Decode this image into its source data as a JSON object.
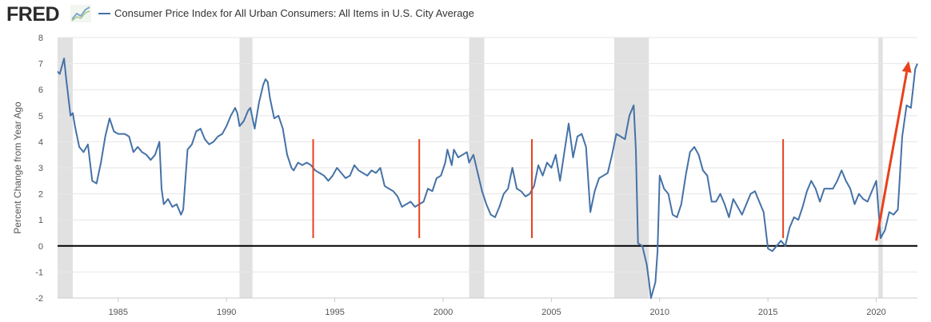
{
  "header": {
    "logo_text": "FRED",
    "logo_icon": "line-chart-icon",
    "legend_label": "Consumer Price Index for All Urban Consumers: All Items in U.S. City Average"
  },
  "chart_data": {
    "type": "line",
    "title": "",
    "xlabel": "",
    "ylabel": "Percent Change from Year Ago",
    "xlim": [
      1982.2,
      2021.9
    ],
    "ylim": [
      -2,
      8
    ],
    "x_ticks": [
      1985,
      1990,
      1995,
      2000,
      2005,
      2010,
      2015,
      2020
    ],
    "y_ticks": [
      -2,
      -1,
      0,
      1,
      2,
      3,
      4,
      5,
      6,
      7,
      8
    ],
    "grid": "horizontal",
    "recessions": [
      [
        1982.2,
        1982.9
      ],
      [
        1990.6,
        1991.2
      ],
      [
        2001.2,
        2001.9
      ],
      [
        2007.9,
        2009.5
      ],
      [
        2020.1,
        2020.3
      ]
    ],
    "zero_line": 0,
    "series": [
      {
        "name": "Consumer Price Index for All Urban Consumers: All Items in U.S. City Average",
        "color": "#4572a7",
        "points": [
          [
            1982.2,
            6.7
          ],
          [
            1982.3,
            6.6
          ],
          [
            1982.5,
            7.2
          ],
          [
            1982.6,
            6.4
          ],
          [
            1982.8,
            5.0
          ],
          [
            1982.9,
            5.1
          ],
          [
            1983.0,
            4.6
          ],
          [
            1983.2,
            3.8
          ],
          [
            1983.4,
            3.6
          ],
          [
            1983.6,
            3.9
          ],
          [
            1983.8,
            2.5
          ],
          [
            1984.0,
            2.4
          ],
          [
            1984.2,
            3.2
          ],
          [
            1984.4,
            4.2
          ],
          [
            1984.6,
            4.9
          ],
          [
            1984.8,
            4.4
          ],
          [
            1985.0,
            4.3
          ],
          [
            1985.3,
            4.3
          ],
          [
            1985.5,
            4.2
          ],
          [
            1985.7,
            3.6
          ],
          [
            1985.9,
            3.8
          ],
          [
            1986.1,
            3.6
          ],
          [
            1986.3,
            3.5
          ],
          [
            1986.5,
            3.3
          ],
          [
            1986.7,
            3.5
          ],
          [
            1986.9,
            4.0
          ],
          [
            1987.0,
            2.2
          ],
          [
            1987.1,
            1.6
          ],
          [
            1987.3,
            1.8
          ],
          [
            1987.5,
            1.5
          ],
          [
            1987.7,
            1.6
          ],
          [
            1987.9,
            1.2
          ],
          [
            1988.0,
            1.4
          ],
          [
            1988.2,
            3.7
          ],
          [
            1988.4,
            3.9
          ],
          [
            1988.6,
            4.4
          ],
          [
            1988.8,
            4.5
          ],
          [
            1989.0,
            4.1
          ],
          [
            1989.2,
            3.9
          ],
          [
            1989.4,
            4.0
          ],
          [
            1989.6,
            4.2
          ],
          [
            1989.8,
            4.3
          ],
          [
            1990.0,
            4.6
          ],
          [
            1990.2,
            5.0
          ],
          [
            1990.4,
            5.3
          ],
          [
            1990.5,
            5.1
          ],
          [
            1990.6,
            4.6
          ],
          [
            1990.8,
            4.8
          ],
          [
            1991.0,
            5.2
          ],
          [
            1991.1,
            5.3
          ],
          [
            1991.3,
            4.5
          ],
          [
            1991.5,
            5.5
          ],
          [
            1991.7,
            6.2
          ],
          [
            1991.8,
            6.4
          ],
          [
            1991.9,
            6.3
          ],
          [
            1992.0,
            5.7
          ],
          [
            1992.2,
            4.9
          ],
          [
            1992.4,
            5.0
          ],
          [
            1992.6,
            4.5
          ],
          [
            1992.8,
            3.5
          ],
          [
            1993.0,
            3.0
          ],
          [
            1993.1,
            2.9
          ],
          [
            1993.3,
            3.2
          ],
          [
            1993.5,
            3.1
          ],
          [
            1993.7,
            3.2
          ],
          [
            1993.9,
            3.1
          ],
          [
            1994.1,
            2.9
          ],
          [
            1994.3,
            2.8
          ],
          [
            1994.5,
            2.7
          ],
          [
            1994.7,
            2.5
          ],
          [
            1994.9,
            2.7
          ],
          [
            1995.1,
            3.0
          ],
          [
            1995.3,
            2.8
          ],
          [
            1995.5,
            2.6
          ],
          [
            1995.7,
            2.7
          ],
          [
            1995.9,
            3.1
          ],
          [
            1996.1,
            2.9
          ],
          [
            1996.3,
            2.8
          ],
          [
            1996.5,
            2.7
          ],
          [
            1996.7,
            2.9
          ],
          [
            1996.9,
            2.8
          ],
          [
            1997.1,
            3.0
          ],
          [
            1997.3,
            2.3
          ],
          [
            1997.5,
            2.2
          ],
          [
            1997.7,
            2.1
          ],
          [
            1997.9,
            1.9
          ],
          [
            1998.1,
            1.5
          ],
          [
            1998.3,
            1.6
          ],
          [
            1998.5,
            1.7
          ],
          [
            1998.7,
            1.5
          ],
          [
            1998.9,
            1.6
          ],
          [
            1999.1,
            1.7
          ],
          [
            1999.3,
            2.2
          ],
          [
            1999.5,
            2.1
          ],
          [
            1999.7,
            2.6
          ],
          [
            1999.9,
            2.7
          ],
          [
            2000.1,
            3.2
          ],
          [
            2000.2,
            3.7
          ],
          [
            2000.4,
            3.1
          ],
          [
            2000.5,
            3.7
          ],
          [
            2000.7,
            3.4
          ],
          [
            2000.9,
            3.5
          ],
          [
            2001.1,
            3.6
          ],
          [
            2001.2,
            3.2
          ],
          [
            2001.4,
            3.5
          ],
          [
            2001.6,
            2.8
          ],
          [
            2001.8,
            2.1
          ],
          [
            2002.0,
            1.6
          ],
          [
            2002.2,
            1.2
          ],
          [
            2002.4,
            1.1
          ],
          [
            2002.6,
            1.5
          ],
          [
            2002.8,
            2.0
          ],
          [
            2003.0,
            2.2
          ],
          [
            2003.2,
            3.0
          ],
          [
            2003.4,
            2.2
          ],
          [
            2003.6,
            2.1
          ],
          [
            2003.8,
            1.9
          ],
          [
            2004.0,
            2.0
          ],
          [
            2004.2,
            2.3
          ],
          [
            2004.4,
            3.1
          ],
          [
            2004.6,
            2.7
          ],
          [
            2004.8,
            3.2
          ],
          [
            2005.0,
            3.0
          ],
          [
            2005.2,
            3.5
          ],
          [
            2005.4,
            2.5
          ],
          [
            2005.6,
            3.6
          ],
          [
            2005.8,
            4.7
          ],
          [
            2006.0,
            3.4
          ],
          [
            2006.2,
            4.2
          ],
          [
            2006.4,
            4.3
          ],
          [
            2006.6,
            3.8
          ],
          [
            2006.8,
            1.3
          ],
          [
            2007.0,
            2.1
          ],
          [
            2007.2,
            2.6
          ],
          [
            2007.4,
            2.7
          ],
          [
            2007.6,
            2.8
          ],
          [
            2007.8,
            3.5
          ],
          [
            2008.0,
            4.3
          ],
          [
            2008.2,
            4.2
          ],
          [
            2008.4,
            4.1
          ],
          [
            2008.6,
            5.0
          ],
          [
            2008.8,
            5.4
          ],
          [
            2008.9,
            3.7
          ],
          [
            2009.0,
            0.1
          ],
          [
            2009.2,
            0.0
          ],
          [
            2009.4,
            -0.7
          ],
          [
            2009.5,
            -1.3
          ],
          [
            2009.6,
            -2.0
          ],
          [
            2009.8,
            -1.4
          ],
          [
            2009.9,
            -0.2
          ],
          [
            2010.0,
            2.7
          ],
          [
            2010.2,
            2.2
          ],
          [
            2010.4,
            2.0
          ],
          [
            2010.6,
            1.2
          ],
          [
            2010.8,
            1.1
          ],
          [
            2011.0,
            1.6
          ],
          [
            2011.2,
            2.7
          ],
          [
            2011.4,
            3.6
          ],
          [
            2011.6,
            3.8
          ],
          [
            2011.8,
            3.5
          ],
          [
            2012.0,
            2.9
          ],
          [
            2012.2,
            2.7
          ],
          [
            2012.4,
            1.7
          ],
          [
            2012.6,
            1.7
          ],
          [
            2012.8,
            2.0
          ],
          [
            2013.0,
            1.6
          ],
          [
            2013.2,
            1.1
          ],
          [
            2013.4,
            1.8
          ],
          [
            2013.6,
            1.5
          ],
          [
            2013.8,
            1.2
          ],
          [
            2014.0,
            1.6
          ],
          [
            2014.2,
            2.0
          ],
          [
            2014.4,
            2.1
          ],
          [
            2014.6,
            1.7
          ],
          [
            2014.8,
            1.3
          ],
          [
            2015.0,
            -0.1
          ],
          [
            2015.2,
            -0.2
          ],
          [
            2015.4,
            0.0
          ],
          [
            2015.6,
            0.2
          ],
          [
            2015.8,
            0.0
          ],
          [
            2016.0,
            0.7
          ],
          [
            2016.2,
            1.1
          ],
          [
            2016.4,
            1.0
          ],
          [
            2016.6,
            1.5
          ],
          [
            2016.8,
            2.1
          ],
          [
            2017.0,
            2.5
          ],
          [
            2017.2,
            2.2
          ],
          [
            2017.4,
            1.7
          ],
          [
            2017.6,
            2.2
          ],
          [
            2017.8,
            2.2
          ],
          [
            2018.0,
            2.2
          ],
          [
            2018.2,
            2.5
          ],
          [
            2018.4,
            2.9
          ],
          [
            2018.6,
            2.5
          ],
          [
            2018.8,
            2.2
          ],
          [
            2019.0,
            1.6
          ],
          [
            2019.2,
            2.0
          ],
          [
            2019.4,
            1.8
          ],
          [
            2019.6,
            1.7
          ],
          [
            2019.8,
            2.1
          ],
          [
            2020.0,
            2.5
          ],
          [
            2020.2,
            0.3
          ],
          [
            2020.4,
            0.6
          ],
          [
            2020.6,
            1.3
          ],
          [
            2020.8,
            1.2
          ],
          [
            2021.0,
            1.4
          ],
          [
            2021.2,
            4.2
          ],
          [
            2021.4,
            5.4
          ],
          [
            2021.6,
            5.3
          ],
          [
            2021.8,
            6.8
          ],
          [
            2021.9,
            7.0
          ]
        ]
      }
    ],
    "annotations": {
      "vertical_markers": [
        1994.0,
        1998.9,
        2004.1,
        2015.7
      ],
      "marker_color": "#e8421d",
      "arrow": {
        "from": [
          2020.0,
          0.2
        ],
        "to": [
          2021.5,
          7.1
        ],
        "color": "#e8421d"
      }
    }
  }
}
